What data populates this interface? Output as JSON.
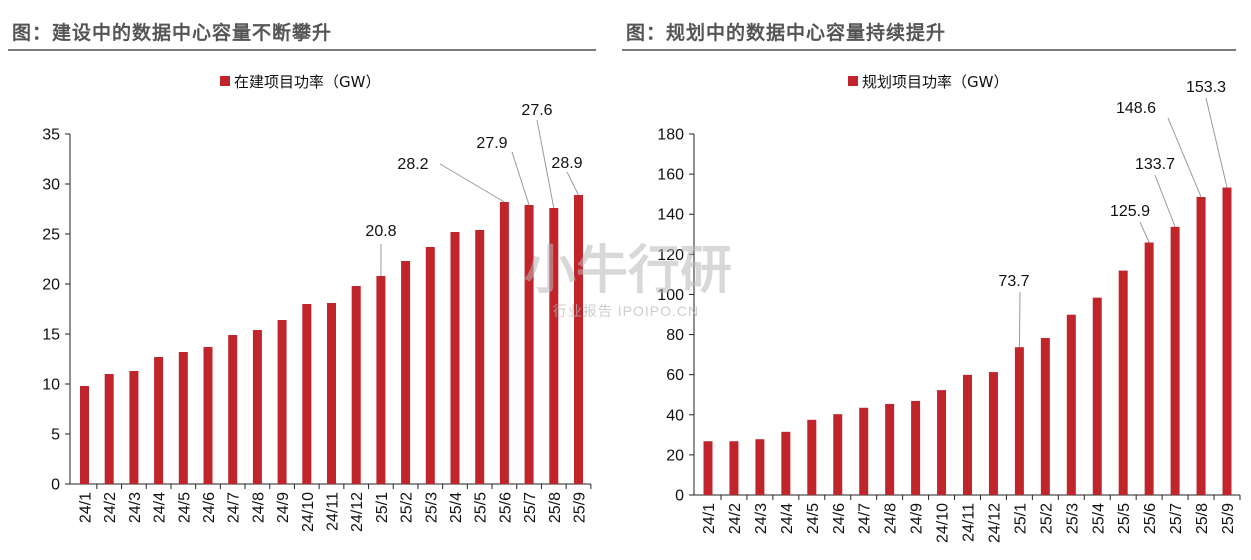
{
  "charts": [
    {
      "heading": "图：建设中的数据中心容量不断攀升",
      "legend": "在建项目功率（GW）"
    },
    {
      "heading": "图：规划中的数据中心容量持续提升",
      "legend": "规划项目功率（GW）"
    }
  ],
  "watermark": {
    "main": "小牛行研",
    "sub": "行业报告 IPOIPO.CN"
  },
  "chart_data": [
    {
      "type": "bar",
      "title": "",
      "categories": [
        "24/1",
        "24/2",
        "24/3",
        "24/4",
        "24/5",
        "24/6",
        "24/7",
        "24/8",
        "24/9",
        "24/10",
        "24/11",
        "24/12",
        "25/1",
        "25/2",
        "25/3",
        "25/4",
        "25/5",
        "25/6",
        "25/7",
        "25/8",
        "25/9"
      ],
      "series": [
        {
          "name": "在建项目功率（GW）",
          "values": [
            9.8,
            11.0,
            11.3,
            12.7,
            13.2,
            13.7,
            14.9,
            15.4,
            16.4,
            18.0,
            18.1,
            19.8,
            20.8,
            22.3,
            23.7,
            25.2,
            25.4,
            28.2,
            27.9,
            27.6,
            28.9
          ]
        }
      ],
      "color": "#c0252c",
      "ylim": [
        0,
        35
      ],
      "yticks": [
        0,
        5,
        10,
        15,
        20,
        25,
        30,
        35
      ],
      "data_labels": [
        {
          "index": 12,
          "text": "20.8"
        },
        {
          "index": 17,
          "text": "28.2"
        },
        {
          "index": 18,
          "text": "27.9"
        },
        {
          "index": 19,
          "text": "27.6"
        },
        {
          "index": 20,
          "text": "28.9"
        }
      ],
      "legend_position": "top-center",
      "grid": false
    },
    {
      "type": "bar",
      "title": "",
      "categories": [
        "24/1",
        "24/2",
        "24/3",
        "24/4",
        "24/5",
        "24/6",
        "24/7",
        "24/8",
        "24/9",
        "24/10",
        "24/11",
        "24/12",
        "25/1",
        "25/2",
        "25/3",
        "25/4",
        "25/5",
        "25/6",
        "25/7",
        "25/8",
        "25/9"
      ],
      "series": [
        {
          "name": "规划项目功率（GW）",
          "values": [
            26.8,
            26.8,
            27.8,
            31.5,
            37.5,
            40.3,
            43.5,
            45.4,
            46.9,
            52.3,
            59.9,
            61.3,
            73.7,
            78.3,
            89.9,
            98.4,
            111.9,
            125.9,
            133.7,
            148.6,
            153.3
          ]
        }
      ],
      "color": "#c0252c",
      "ylim": [
        0,
        180
      ],
      "yticks": [
        0,
        20,
        40,
        60,
        80,
        100,
        120,
        140,
        160,
        180
      ],
      "data_labels": [
        {
          "index": 12,
          "text": "73.7"
        },
        {
          "index": 17,
          "text": "125.9"
        },
        {
          "index": 18,
          "text": "133.7"
        },
        {
          "index": 19,
          "text": "148.6"
        },
        {
          "index": 20,
          "text": "153.3"
        }
      ],
      "legend_position": "top-center",
      "grid": false
    }
  ]
}
